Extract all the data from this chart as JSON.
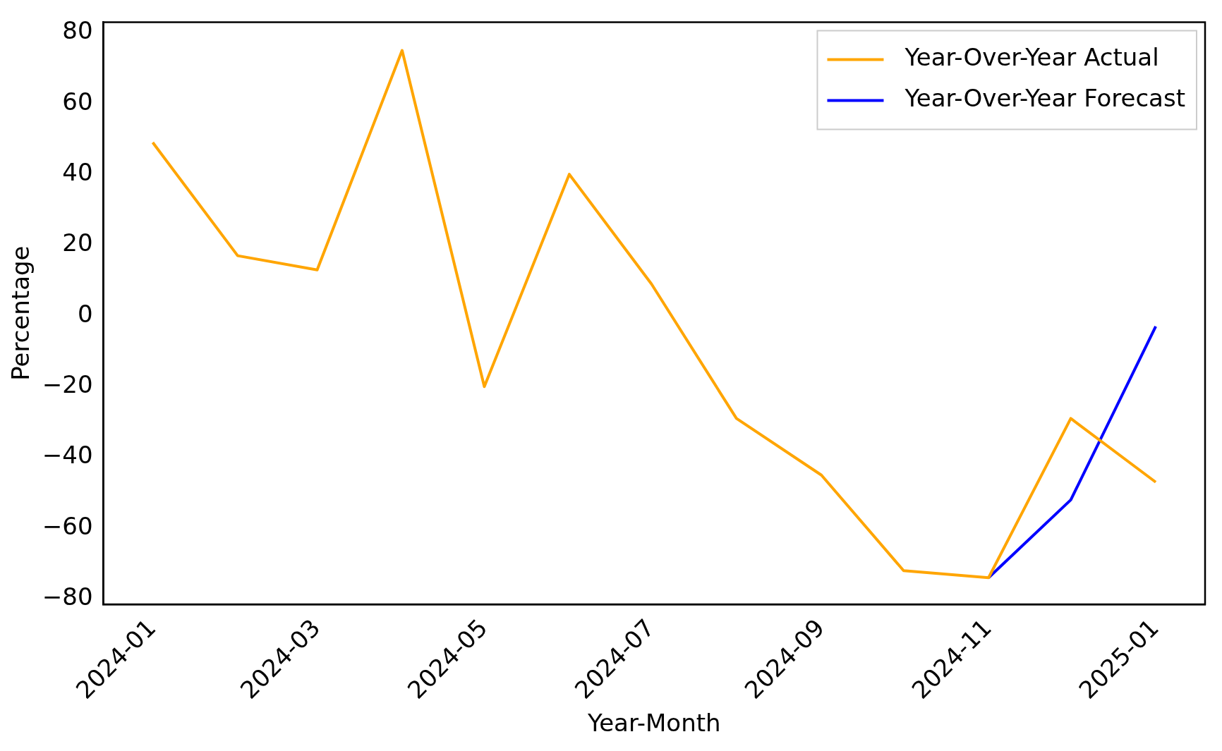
{
  "chart_data": {
    "type": "line",
    "xlabel": "Year-Month",
    "ylabel": "Percentage",
    "xlim": [
      "2023-12-14",
      "2025-01-19"
    ],
    "ylim": [
      -81.5,
      83
    ],
    "xticks": [
      "2024-01",
      "2024-03",
      "2024-05",
      "2024-07",
      "2024-09",
      "2024-11",
      "2025-01"
    ],
    "yticks": [
      -80,
      -60,
      -40,
      -20,
      0,
      20,
      40,
      60,
      80
    ],
    "grid": false,
    "legend": "top right",
    "series": [
      {
        "name": "Year-Over-Year Actual",
        "color": "#ffa500",
        "x": [
          "2024-01",
          "2024-02",
          "2024-03",
          "2024-04",
          "2024-05",
          "2024-06",
          "2024-07",
          "2024-08",
          "2024-09",
          "2024-10",
          "2024-11",
          "2024-12",
          "2025-01"
        ],
        "values": [
          49,
          17,
          13,
          75,
          -20,
          40,
          9,
          -29,
          -45,
          -72,
          -74,
          -29,
          -47
        ]
      },
      {
        "name": "Year-Over-Year Forecast",
        "color": "#0000ff",
        "x": [
          "2024-11",
          "2024-12",
          "2025-01"
        ],
        "values": [
          -74,
          -52,
          -3
        ]
      }
    ]
  }
}
